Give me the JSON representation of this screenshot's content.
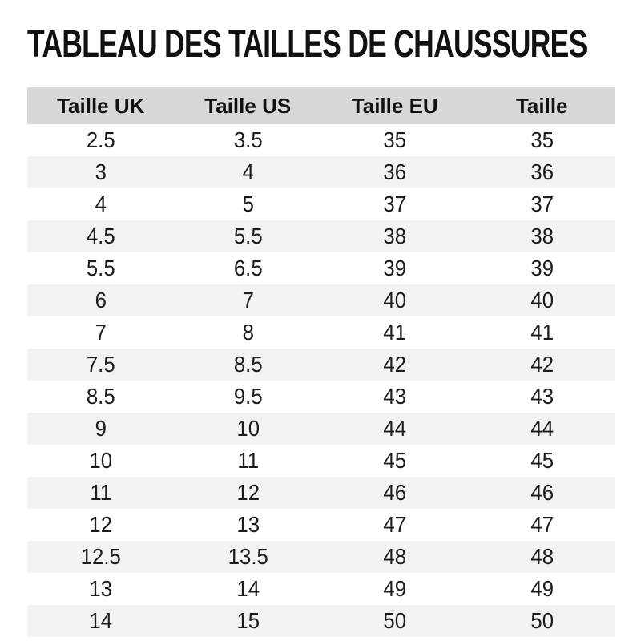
{
  "page": {
    "title": "TABLEAU DES TAILLES DE CHAUSSURES"
  },
  "table": {
    "columns": [
      "Taille UK",
      "Taille US",
      "Taille EU",
      "Taille"
    ],
    "rows": [
      [
        "2.5",
        "3.5",
        "35",
        "35"
      ],
      [
        "3",
        "4",
        "36",
        "36"
      ],
      [
        "4",
        "5",
        "37",
        "37"
      ],
      [
        "4.5",
        "5.5",
        "38",
        "38"
      ],
      [
        "5.5",
        "6.5",
        "39",
        "39"
      ],
      [
        "6",
        "7",
        "40",
        "40"
      ],
      [
        "7",
        "8",
        "41",
        "41"
      ],
      [
        "7.5",
        "8.5",
        "42",
        "42"
      ],
      [
        "8.5",
        "9.5",
        "43",
        "43"
      ],
      [
        "9",
        "10",
        "44",
        "44"
      ],
      [
        "10",
        "11",
        "45",
        "45"
      ],
      [
        "11",
        "12",
        "46",
        "46"
      ],
      [
        "12",
        "13",
        "47",
        "47"
      ],
      [
        "12.5",
        "13.5",
        "48",
        "48"
      ],
      [
        "13",
        "14",
        "49",
        "49"
      ],
      [
        "14",
        "15",
        "50",
        "50"
      ]
    ]
  },
  "colors": {
    "header_bg": "#d8d8d8",
    "alt_row_bg": "#f2f2f2",
    "text": "#1c1c1c",
    "title": "#111111"
  }
}
